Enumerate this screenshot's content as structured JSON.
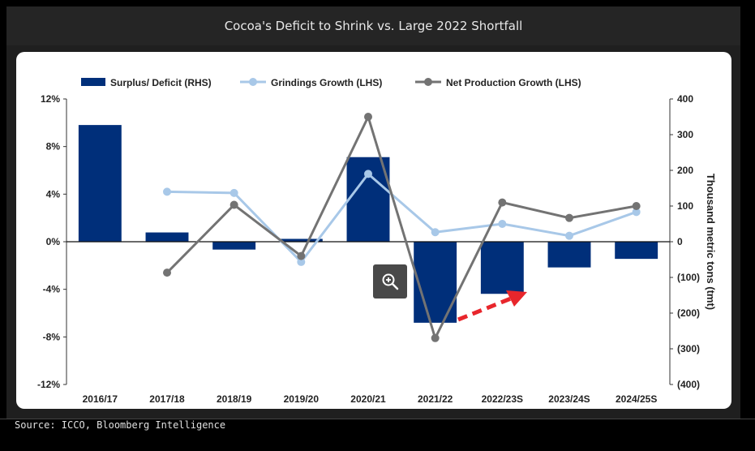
{
  "page": {
    "title": "Cocoa's Deficit to Shrink vs. Large 2022 Shortfall",
    "source": "Source: ICCO, Bloomberg Intelligence",
    "zoom_icon": "zoom-in-icon"
  },
  "chart_data": {
    "type": "bar",
    "title": "",
    "categories": [
      "2016/17",
      "2017/18",
      "2018/19",
      "2019/20",
      "2020/21",
      "2021/22",
      "2022/23S",
      "2023/24S",
      "2024/25S"
    ],
    "left_axis": {
      "ylim": [
        -12,
        12
      ],
      "ticks": [
        -12,
        -8,
        -4,
        0,
        4,
        8,
        12
      ],
      "tick_labels": [
        "-12%",
        "-8%",
        "-4%",
        "0%",
        "4%",
        "8%",
        "12%"
      ]
    },
    "right_axis": {
      "label": "Thousand metric tons (tmt)",
      "ylim": [
        -400,
        400
      ],
      "ticks": [
        -400,
        -300,
        -200,
        -100,
        0,
        100,
        200,
        300,
        400
      ],
      "tick_labels": [
        "(400)",
        "(300)",
        "(200)",
        "(100)",
        "0",
        "100",
        "200",
        "300",
        "400"
      ]
    },
    "series": [
      {
        "name": "Surplus/ Deficit (RHS)",
        "kind": "bar",
        "axis": "right",
        "color": "#002f7a",
        "values": [
          327,
          26,
          -22,
          8,
          237,
          -227,
          -146,
          -72,
          -48
        ]
      },
      {
        "name": "Grindings Growth (LHS)",
        "kind": "line",
        "axis": "left",
        "color": "#a8c8e8",
        "values": [
          null,
          4.2,
          4.1,
          -1.7,
          5.7,
          0.8,
          1.5,
          0.5,
          2.5
        ]
      },
      {
        "name": "Net Production Growth (LHS)",
        "kind": "line",
        "axis": "left",
        "color": "#737373",
        "values": [
          null,
          -2.6,
          3.1,
          -1.2,
          10.5,
          -8.1,
          3.3,
          2.0,
          3.0
        ]
      }
    ],
    "legend_position": "top",
    "grid": false
  }
}
